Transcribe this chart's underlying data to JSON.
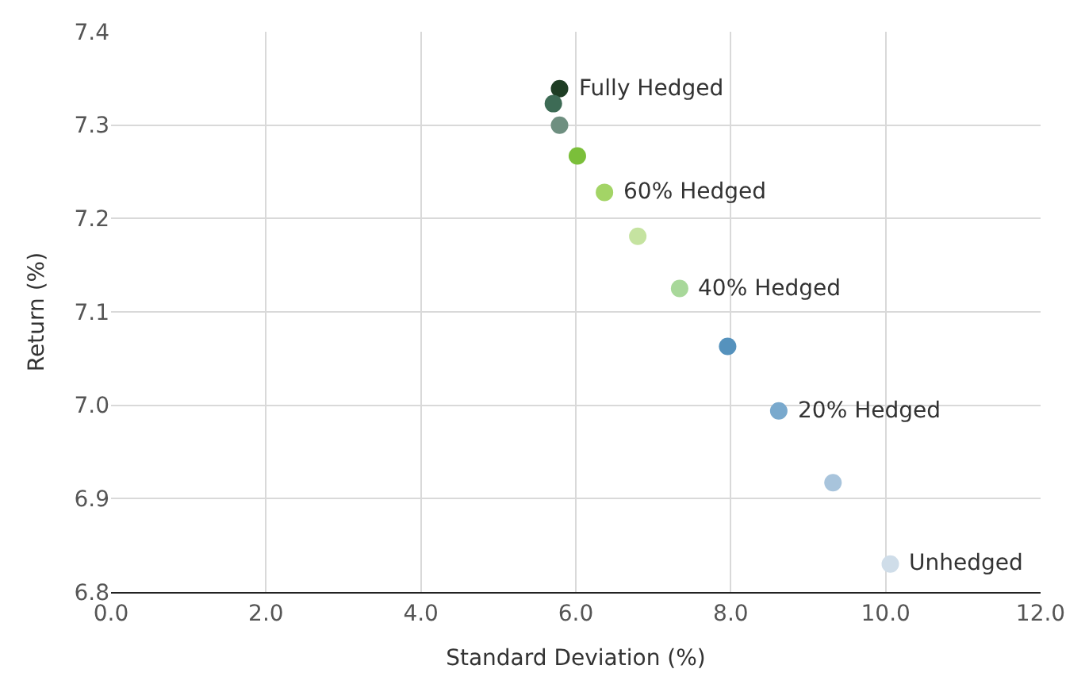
{
  "chart_data": {
    "type": "scatter",
    "xlabel": "Standard Deviation (%)",
    "ylabel": "Return (%)",
    "x": [
      5.79,
      5.71,
      5.79,
      6.02,
      6.37,
      6.8,
      7.34,
      7.96,
      8.62,
      9.32,
      10.06
    ],
    "values": [
      7.339,
      7.323,
      7.3,
      7.267,
      7.228,
      7.181,
      7.125,
      7.063,
      6.994,
      6.917,
      6.83
    ],
    "colors": [
      "#1e3d24",
      "#3d6b55",
      "#6e8f80",
      "#7bbf3a",
      "#a3d466",
      "#c5e3a0",
      "#a8d89a",
      "#5592bd",
      "#79a9cd",
      "#a8c4dc",
      "#cfdde9"
    ],
    "annotations": [
      {
        "text": "Fully Hedged",
        "x": 5.79,
        "y": 7.339
      },
      {
        "text": "60% Hedged",
        "x": 6.37,
        "y": 7.228
      },
      {
        "text": "40% Hedged",
        "x": 7.34,
        "y": 7.125
      },
      {
        "text": "20% Hedged",
        "x": 8.62,
        "y": 6.994
      },
      {
        "text": "Unhedged",
        "x": 10.06,
        "y": 6.83
      }
    ],
    "xlim": [
      0,
      12
    ],
    "ylim": [
      6.8,
      7.4
    ],
    "xticks": [
      {
        "value": 0,
        "label": "0.0"
      },
      {
        "value": 2,
        "label": "2.0"
      },
      {
        "value": 4,
        "label": "4.0"
      },
      {
        "value": 6,
        "label": "6.0"
      },
      {
        "value": 8,
        "label": "8.0"
      },
      {
        "value": 10,
        "label": "10.0"
      },
      {
        "value": 12,
        "label": "12.0"
      }
    ],
    "yticks": [
      {
        "value": 6.8,
        "label": "6.8"
      },
      {
        "value": 6.9,
        "label": "6.9"
      },
      {
        "value": 7,
        "label": "7.0"
      },
      {
        "value": 7.1,
        "label": "7.1"
      },
      {
        "value": 7.2,
        "label": "7.2"
      },
      {
        "value": 7.3,
        "label": "7.3"
      },
      {
        "value": 7.4,
        "label": "7.4"
      }
    ],
    "grid": true,
    "marker": "circle",
    "legend": false
  }
}
